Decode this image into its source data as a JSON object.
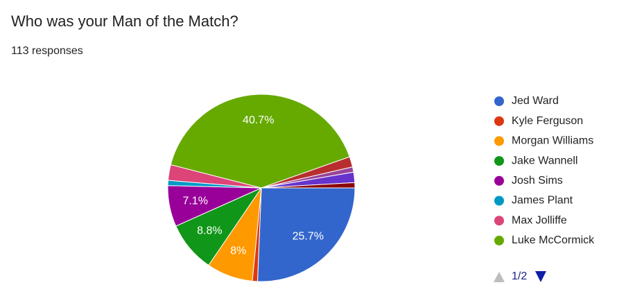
{
  "chart_data": {
    "type": "pie",
    "title": "Who was your Man of the Match?",
    "subtitle": "113 responses",
    "categories": [
      "Jed Ward",
      "Kyle Ferguson",
      "Morgan Williams",
      "Jake Wannell",
      "Josh Sims",
      "James Plant",
      "Max Jolliffe",
      "Luke McCormick",
      null,
      null,
      null,
      null
    ],
    "values": [
      25.7,
      0.9,
      8,
      8.8,
      7.1,
      0.9,
      2.7,
      40.7,
      1.8,
      0.9,
      1.8,
      0.9
    ],
    "value_labels": [
      "25.7%",
      null,
      "8%",
      "8.8%",
      "7.1%",
      null,
      null,
      "40.7%",
      null,
      null,
      null,
      null
    ],
    "colors": [
      "#3366cc",
      "#dc3912",
      "#ff9900",
      "#109618",
      "#990099",
      "#0099c6",
      "#dd4477",
      "#66aa00",
      "#b82e2e",
      "#994499",
      "#6633cc",
      "#8b0707"
    ],
    "legend_position": "right",
    "legend_page": "1/2"
  }
}
